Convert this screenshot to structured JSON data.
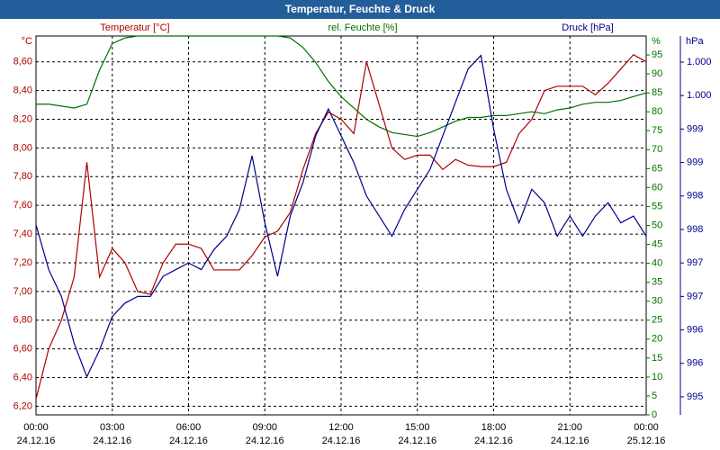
{
  "chart_data": {
    "type": "line",
    "title": "Temperatur, Feuchte & Druck",
    "y_label": "°C",
    "y2_label": "%",
    "y3_label": "hPa",
    "x": [
      0,
      0.5,
      1,
      1.5,
      2,
      2.5,
      3,
      3.5,
      4,
      4.5,
      5,
      5.5,
      6,
      6.5,
      7,
      7.5,
      8,
      8.5,
      9,
      9.5,
      10,
      10.5,
      11,
      11.5,
      12,
      12.5,
      13,
      13.5,
      14,
      14.5,
      15,
      15.5,
      16,
      16.5,
      17,
      17.5,
      18,
      18.5,
      19,
      19.5,
      20,
      20.5,
      21,
      21.5,
      22,
      22.5,
      23,
      23.5,
      24
    ],
    "xlim": [
      0,
      24
    ],
    "xticks": [
      {
        "value": 0,
        "label": "00:00",
        "date": "24.12.16"
      },
      {
        "value": 3,
        "label": "03:00",
        "date": "24.12.16"
      },
      {
        "value": 6,
        "label": "06:00",
        "date": "24.12.16"
      },
      {
        "value": 9,
        "label": "09:00",
        "date": "24.12.16"
      },
      {
        "value": 12,
        "label": "12:00",
        "date": "24.12.16"
      },
      {
        "value": 15,
        "label": "15:00",
        "date": "24.12.16"
      },
      {
        "value": 18,
        "label": "18:00",
        "date": "24.12.16"
      },
      {
        "value": 21,
        "label": "21:00",
        "date": "24.12.16"
      },
      {
        "value": 24,
        "label": "00:00",
        "date": "25.12.16"
      }
    ],
    "ylim": [
      6.14,
      8.78
    ],
    "yticks": [
      {
        "value": 6.2,
        "label": "6,20"
      },
      {
        "value": 6.4,
        "label": "6,40"
      },
      {
        "value": 6.6,
        "label": "6,60"
      },
      {
        "value": 6.8,
        "label": "6,80"
      },
      {
        "value": 7.0,
        "label": "7,00"
      },
      {
        "value": 7.2,
        "label": "7,20"
      },
      {
        "value": 7.4,
        "label": "7,40"
      },
      {
        "value": 7.6,
        "label": "7,60"
      },
      {
        "value": 7.8,
        "label": "7,80"
      },
      {
        "value": 8.0,
        "label": "8,00"
      },
      {
        "value": 8.2,
        "label": "8,20"
      },
      {
        "value": 8.4,
        "label": "8,40"
      },
      {
        "value": 8.6,
        "label": "8,60"
      }
    ],
    "y2lim": [
      0,
      100
    ],
    "y2ticks": [
      0,
      5,
      10,
      15,
      20,
      25,
      30,
      35,
      40,
      45,
      50,
      55,
      60,
      65,
      70,
      75,
      80,
      85,
      90,
      95
    ],
    "y3lim": [
      994.73,
      1000.39
    ],
    "y3ticks": [
      {
        "value": 995,
        "label": "995"
      },
      {
        "value": 995.5,
        "label": "996"
      },
      {
        "value": 996,
        "label": "996"
      },
      {
        "value": 996.5,
        "label": "997"
      },
      {
        "value": 997,
        "label": "997"
      },
      {
        "value": 997.5,
        "label": "998"
      },
      {
        "value": 998,
        "label": "998"
      },
      {
        "value": 998.5,
        "label": "999"
      },
      {
        "value": 999,
        "label": "999"
      },
      {
        "value": 999.5,
        "label": "1.000"
      },
      {
        "value": 1000,
        "label": "1.000"
      }
    ],
    "grid": true,
    "series": [
      {
        "name": "Temperatur [°C]",
        "color": "#b00000",
        "axis": "y",
        "values": [
          6.25,
          6.6,
          6.8,
          7.1,
          7.9,
          7.1,
          7.3,
          7.2,
          7.0,
          6.98,
          7.2,
          7.33,
          7.33,
          7.3,
          7.15,
          7.15,
          7.15,
          7.25,
          7.38,
          7.42,
          7.55,
          7.85,
          8.1,
          8.25,
          8.2,
          8.1,
          8.6,
          8.3,
          8.0,
          7.92,
          7.95,
          7.95,
          7.85,
          7.92,
          7.88,
          7.87,
          7.87,
          7.9,
          8.1,
          8.2,
          8.4,
          8.43,
          8.43,
          8.43,
          8.37,
          8.45,
          8.55,
          8.65,
          8.6
        ]
      },
      {
        "name": "rel. Feuchte [%]",
        "color": "#007000",
        "axis": "y2",
        "values": [
          82,
          82,
          81.5,
          81,
          82,
          91,
          98,
          99.5,
          100,
          100,
          100,
          100,
          100,
          100,
          100,
          100,
          100,
          100,
          100,
          100,
          99.5,
          97,
          93,
          88,
          84,
          81,
          78,
          76,
          74.5,
          74,
          73.5,
          74.5,
          76,
          77.5,
          78.5,
          78.5,
          79,
          79,
          79.5,
          80,
          79.5,
          80.5,
          81,
          82,
          82.5,
          82.5,
          83,
          84,
          85
        ]
      },
      {
        "name": "Druck [hPa]",
        "color": "#00008b",
        "axis": "y3",
        "values": [
          997.57,
          996.9,
          996.5,
          995.8,
          995.3,
          995.7,
          996.2,
          996.4,
          996.5,
          996.5,
          996.8,
          996.9,
          997.0,
          996.9,
          997.2,
          997.4,
          997.8,
          998.6,
          997.6,
          996.8,
          997.7,
          998.2,
          998.9,
          999.3,
          998.9,
          998.5,
          998.0,
          997.7,
          997.4,
          997.8,
          998.1,
          998.4,
          998.9,
          999.4,
          999.9,
          1000.1,
          999.0,
          998.1,
          997.6,
          998.1,
          997.9,
          997.4,
          997.7,
          997.4,
          997.7,
          997.9,
          997.6,
          997.7,
          997.4
        ]
      }
    ]
  }
}
